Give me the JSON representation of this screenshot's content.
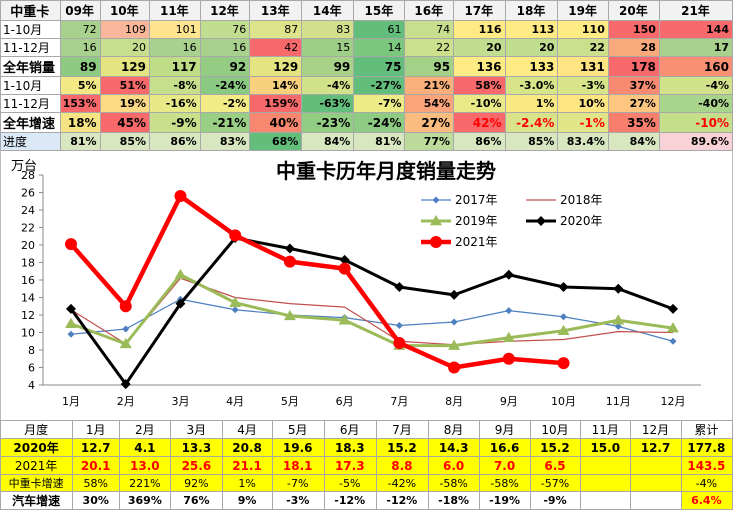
{
  "top_table": {
    "header": [
      "中重卡",
      "09年",
      "10年",
      "11年",
      "12年",
      "13年",
      "14年",
      "15年",
      "16年",
      "17年",
      "18年",
      "19年",
      "20年",
      "21年"
    ],
    "rows": [
      {
        "label": "1-10月",
        "values": [
          "72",
          "109",
          "101",
          "76",
          "87",
          "83",
          "61",
          "74",
          "116",
          "113",
          "110",
          "150",
          "144"
        ],
        "colors": [
          "#a9d18e",
          "#f8b79a",
          "#ffe48f",
          "#c1dd8f",
          "#dde48a",
          "#d2e08c",
          "#63be7b",
          "#c6de8e",
          "#ffeb84",
          "#ffeb84",
          "#ffeb84",
          "#f8696b",
          "#f8696b"
        ],
        "bold": [
          false,
          false,
          false,
          false,
          false,
          false,
          false,
          false,
          true,
          true,
          true,
          true,
          true
        ]
      },
      {
        "label": "11-12月",
        "values": [
          "16",
          "20",
          "16",
          "16",
          "42",
          "15",
          "14",
          "22",
          "20",
          "20",
          "22",
          "28",
          "17"
        ],
        "colors": [
          "#a9d18e",
          "#c6de8e",
          "#a9d18e",
          "#a9d18e",
          "#f8696b",
          "#9fcf86",
          "#7bc77e",
          "#ccdf8c",
          "#c1dd8f",
          "#c1dd8f",
          "#ccdf8c",
          "#fbaa7c",
          "#a9d18e"
        ],
        "bold": [
          false,
          false,
          false,
          false,
          false,
          false,
          false,
          false,
          true,
          true,
          true,
          true,
          true
        ]
      },
      {
        "label": "全年销量",
        "values": [
          "89",
          "129",
          "117",
          "92",
          "129",
          "99",
          "75",
          "95",
          "136",
          "133",
          "131",
          "178",
          "160"
        ],
        "colors": [
          "#8fca82",
          "#e5e483",
          "#bfdc86",
          "#95cc84",
          "#e5e483",
          "#a7d288",
          "#63be7b",
          "#a3d187",
          "#ffeb84",
          "#ffeb84",
          "#fee482",
          "#f8696b",
          "#f99073"
        ],
        "bold": [
          true,
          true,
          true,
          true,
          true,
          true,
          true,
          true,
          true,
          true,
          true,
          true,
          true
        ],
        "rowbold": true
      },
      {
        "label": "1-10月",
        "values": [
          "5%",
          "51%",
          "-8%",
          "-24%",
          "14%",
          "-4%",
          "-27%",
          "21%",
          "58%",
          "-3.0%",
          "-3%",
          "37%",
          "-4%"
        ],
        "colors": [
          "#f3e883",
          "#f8696b",
          "#c7df8c",
          "#89c981",
          "#f8d07e",
          "#d2e28a",
          "#63be7b",
          "#f9b07b",
          "#f8696b",
          "#d7e488",
          "#d7e488",
          "#f88a72",
          "#d2e28a"
        ],
        "bold": [
          true,
          true,
          true,
          true,
          true,
          true,
          true,
          true,
          true,
          true,
          true,
          true,
          true
        ],
        "red": [
          false,
          false,
          false,
          false,
          false,
          false,
          false,
          false,
          false,
          false,
          false,
          false,
          false
        ]
      },
      {
        "label": "11-12月",
        "values": [
          "153%",
          "19%",
          "-16%",
          "-2%",
          "159%",
          "-63%",
          "-7%",
          "54%",
          "-10%",
          "1%",
          "10%",
          "27%",
          "-40%"
        ],
        "colors": [
          "#f8696b",
          "#fbd985",
          "#e7e987",
          "#f3eb85",
          "#f8696b",
          "#63be7b",
          "#edeb86",
          "#fba37a",
          "#e9e987",
          "#f8e983",
          "#fde582",
          "#fcc580",
          "#a9d48b"
        ],
        "bold": [
          true,
          true,
          true,
          true,
          true,
          true,
          true,
          true,
          true,
          true,
          true,
          true,
          true
        ]
      },
      {
        "label": "全年增速",
        "values": [
          "18%",
          "45%",
          "-9%",
          "-21%",
          "40%",
          "-23%",
          "-24%",
          "27%",
          "42%",
          "-2.4%",
          "-1%",
          "35%",
          "-10%"
        ],
        "colors": [
          "#f6e383",
          "#f8696b",
          "#c9df8b",
          "#9acf86",
          "#f8876f",
          "#92cd84",
          "#8ecb83",
          "#fbbd7f",
          "#f8696b",
          "#d9e389",
          "#e0e588",
          "#f87e6e",
          "#c5de8a"
        ],
        "bold": [
          true,
          true,
          true,
          true,
          true,
          true,
          true,
          true,
          true,
          true,
          true,
          true,
          true
        ],
        "rowbold": true,
        "red": [
          false,
          false,
          false,
          false,
          false,
          false,
          false,
          false,
          true,
          true,
          true,
          false,
          true
        ]
      },
      {
        "label": "进度",
        "values": [
          "81%",
          "85%",
          "86%",
          "83%",
          "68%",
          "84%",
          "81%",
          "77%",
          "86%",
          "85%",
          "83.4%",
          "84%",
          "89.6%"
        ],
        "colors": [
          "#d8e7bf",
          "#d8e7bf",
          "#d8e7bf",
          "#d8e7bf",
          "#63be7b",
          "#d8e7bf",
          "#d8e7bf",
          "#bcdb9a",
          "#d8e7bf",
          "#d8e7bf",
          "#d8e7bf",
          "#d8e7bf",
          "#f8d2d6"
        ],
        "bold": [
          true,
          true,
          true,
          true,
          true,
          true,
          true,
          true,
          true,
          true,
          true,
          true,
          true
        ],
        "labelcolor": "#dbe8f5"
      }
    ]
  },
  "chart_data": {
    "type": "line",
    "title": "中重卡历年月度销量走势",
    "ylabel": "万台",
    "categories": [
      "1月",
      "2月",
      "3月",
      "4月",
      "5月",
      "6月",
      "7月",
      "8月",
      "9月",
      "10月",
      "11月",
      "12月"
    ],
    "ylim": [
      4,
      28
    ],
    "yticks": [
      4,
      6,
      8,
      10,
      12,
      14,
      16,
      18,
      20,
      22,
      24,
      26,
      28
    ],
    "legend_position": "top-right",
    "series": [
      {
        "name": "2017年",
        "color": "#4e7fc0",
        "marker": "diamond",
        "width": 1.2,
        "values": [
          9.8,
          10.4,
          13.8,
          12.6,
          12.0,
          11.7,
          10.8,
          11.2,
          12.5,
          11.8,
          10.7,
          9.0
        ]
      },
      {
        "name": "2018年",
        "color": "#c0504d",
        "marker": "none",
        "width": 1.2,
        "values": [
          12.6,
          8.7,
          16.2,
          14.0,
          13.3,
          12.9,
          9.0,
          8.6,
          9.0,
          9.2,
          10.1,
          10.0
        ]
      },
      {
        "name": "2019年",
        "color": "#9bbb59",
        "marker": "triangle",
        "width": 3,
        "values": [
          11.0,
          8.7,
          16.6,
          13.4,
          11.9,
          11.4,
          8.5,
          8.5,
          9.4,
          10.2,
          11.4,
          10.5
        ]
      },
      {
        "name": "2020年",
        "color": "#000000",
        "marker": "diamond",
        "width": 3,
        "values": [
          12.7,
          4.1,
          13.3,
          20.8,
          19.6,
          18.3,
          15.2,
          14.3,
          16.6,
          15.2,
          15.0,
          12.7
        ]
      },
      {
        "name": "2021年",
        "color": "#ff0000",
        "marker": "circle",
        "width": 4.5,
        "values": [
          20.1,
          13.0,
          25.6,
          21.1,
          18.1,
          17.3,
          8.8,
          6.0,
          7.0,
          6.5,
          null,
          null
        ]
      }
    ]
  },
  "bottom_table": {
    "header": [
      "月度",
      "1月",
      "2月",
      "3月",
      "4月",
      "5月",
      "6月",
      "7月",
      "8月",
      "9月",
      "10月",
      "11月",
      "12月",
      "累计"
    ],
    "row2020": {
      "label": "2020年",
      "values": [
        "12.7",
        "4.1",
        "13.3",
        "20.8",
        "19.6",
        "18.3",
        "15.2",
        "14.3",
        "16.6",
        "15.2",
        "15.0",
        "12.7",
        "177.8"
      ]
    },
    "row2021": {
      "label": "2021年",
      "values": [
        "20.1",
        "13.0",
        "25.6",
        "21.1",
        "18.1",
        "17.3",
        "8.8",
        "6.0",
        "7.0",
        "6.5",
        "",
        "",
        "143.5"
      ]
    },
    "rowGrowth": {
      "label": "中重卡增速",
      "values": [
        "58%",
        "221%",
        "92%",
        "1%",
        "-7%",
        "-5%",
        "-42%",
        "-58%",
        "-58%",
        "-57%",
        "",
        "",
        "-4%"
      ]
    },
    "rowAuto": {
      "label": "汽车增速",
      "values": [
        "30%",
        "369%",
        "76%",
        "9%",
        "-3%",
        "-12%",
        "-12%",
        "-18%",
        "-19%",
        "-9%",
        "",
        "",
        "6.4%"
      ]
    }
  }
}
